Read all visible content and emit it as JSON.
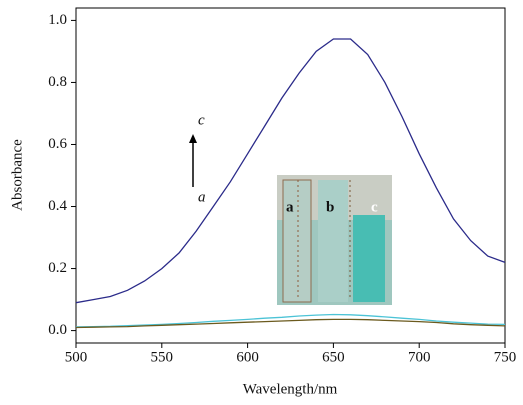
{
  "chart_data": {
    "type": "line",
    "xlabel": "Wavelength/nm",
    "ylabel": "Absorbance",
    "x": [
      500,
      510,
      520,
      530,
      540,
      550,
      560,
      570,
      580,
      590,
      600,
      610,
      620,
      630,
      640,
      650,
      660,
      670,
      680,
      690,
      700,
      710,
      720,
      730,
      740,
      750
    ],
    "series": [
      {
        "color": "#2b2b8a",
        "values": [
          0.09,
          0.1,
          0.11,
          0.13,
          0.16,
          0.2,
          0.25,
          0.32,
          0.4,
          0.48,
          0.57,
          0.66,
          0.75,
          0.83,
          0.9,
          0.94,
          0.94,
          0.89,
          0.8,
          0.69,
          0.57,
          0.46,
          0.36,
          0.29,
          0.24,
          0.22
        ]
      },
      {
        "color": "#4cc3d6",
        "values": [
          0.012,
          0.013,
          0.014,
          0.016,
          0.018,
          0.02,
          0.023,
          0.026,
          0.03,
          0.033,
          0.036,
          0.04,
          0.043,
          0.047,
          0.05,
          0.052,
          0.051,
          0.048,
          0.044,
          0.04,
          0.036,
          0.031,
          0.027,
          0.024,
          0.021,
          0.02
        ]
      },
      {
        "color": "#6b5a1e",
        "values": [
          0.01,
          0.011,
          0.012,
          0.013,
          0.015,
          0.017,
          0.019,
          0.021,
          0.023,
          0.025,
          0.027,
          0.029,
          0.031,
          0.033,
          0.035,
          0.036,
          0.036,
          0.035,
          0.033,
          0.031,
          0.029,
          0.026,
          0.022,
          0.019,
          0.017,
          0.015
        ]
      }
    ],
    "xlim": [
      500,
      750
    ],
    "xticks": [
      500,
      550,
      600,
      650,
      700,
      750
    ],
    "ylim": [
      -0.04,
      1.04
    ],
    "yticks": [
      {
        "value": 0,
        "label": "0.0"
      },
      0.2,
      0.4,
      0.6,
      0.8,
      {
        "value": 1,
        "label": "1.0"
      }
    ],
    "grid": false,
    "arrow_labels": [
      "c",
      "a"
    ],
    "inset_labels": [
      "a",
      "b",
      "c"
    ]
  }
}
